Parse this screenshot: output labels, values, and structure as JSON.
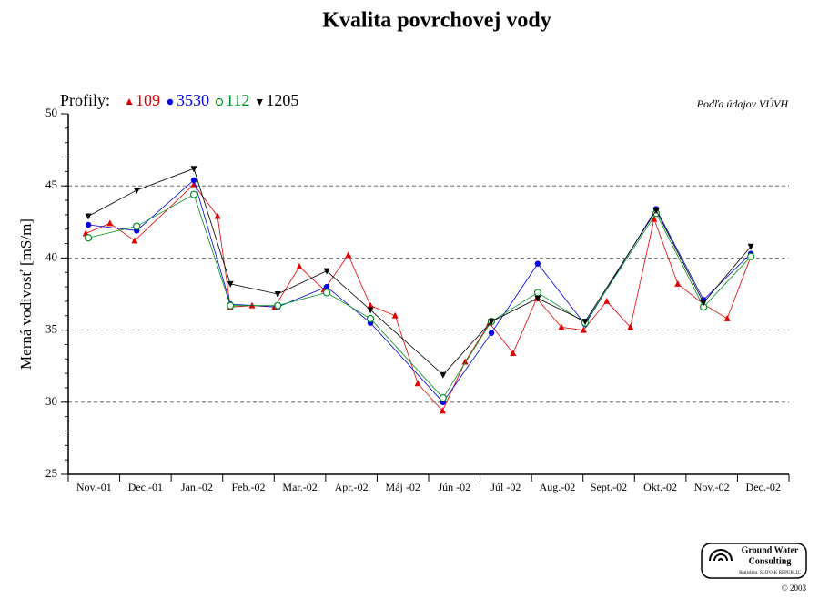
{
  "chart_data": {
    "type": "line",
    "title": "Kvalita povrchovej vody",
    "legend_title": "Profily:",
    "note": "Podľa údajov VÚVH",
    "y_label": "Merná vodivosť [mS/m]",
    "categories": [
      "Nov.-01",
      "Dec.-01",
      "Jan.-02",
      "Feb.-02",
      "Mar.-02",
      "Apr.-02",
      "Máj -02",
      "Jún -02",
      "Júl -02",
      "Aug.-02",
      "Sept.-02",
      "Okt.-02",
      "Nov.-02",
      "Dec.-02"
    ],
    "xlim": [
      0,
      14
    ],
    "ylim": [
      25,
      50
    ],
    "yticks": [
      25,
      30,
      35,
      40,
      45,
      50
    ],
    "grid": true,
    "series": [
      {
        "name": "109",
        "color": "#e00000",
        "marker": "triangle-up",
        "x": [
          0.34,
          0.81,
          1.29,
          2.44,
          2.9,
          3.15,
          3.57,
          4.01,
          4.49,
          4.97,
          5.44,
          5.87,
          6.35,
          6.79,
          7.27,
          7.71,
          8.18,
          8.64,
          9.1,
          9.58,
          10.01,
          10.46,
          10.92,
          11.38,
          11.84,
          12.34,
          12.8,
          13.26
        ],
        "values": [
          41.7,
          42.4,
          41.2,
          45.1,
          42.9,
          36.6,
          36.7,
          36.6,
          39.4,
          37.8,
          40.2,
          36.7,
          36.0,
          31.3,
          29.4,
          32.8,
          35.5,
          33.4,
          37.2,
          35.2,
          35.0,
          37.0,
          35.2,
          42.7,
          38.2,
          36.8,
          35.8,
          40.1
        ]
      },
      {
        "name": "3530",
        "color": "#0000e0",
        "marker": "circle",
        "x": [
          0.39,
          1.33,
          2.44,
          3.15,
          4.07,
          5.02,
          5.87,
          7.28,
          8.22,
          9.12,
          10.04,
          11.42,
          12.34,
          13.26
        ],
        "values": [
          42.3,
          41.9,
          45.4,
          36.8,
          36.6,
          38.0,
          35.5,
          30.0,
          34.8,
          39.6,
          35.4,
          43.4,
          37.1,
          40.3
        ]
      },
      {
        "name": "112",
        "color": "#009020",
        "marker": "circle-open",
        "x": [
          0.39,
          1.33,
          2.44,
          3.15,
          4.07,
          5.02,
          5.87,
          7.28,
          8.22,
          9.12,
          10.04,
          11.42,
          12.34,
          13.26
        ],
        "values": [
          41.4,
          42.2,
          44.4,
          36.7,
          36.7,
          37.6,
          35.8,
          30.3,
          35.6,
          37.6,
          35.5,
          43.1,
          36.6,
          40.1
        ]
      },
      {
        "name": "1205",
        "color": "#000000",
        "marker": "triangle-down",
        "x": [
          0.39,
          1.33,
          2.44,
          3.15,
          4.07,
          5.02,
          5.87,
          7.28,
          8.22,
          9.12,
          10.04,
          11.42,
          12.34,
          13.26
        ],
        "values": [
          42.9,
          44.7,
          46.2,
          38.2,
          37.5,
          39.1,
          36.4,
          31.9,
          35.6,
          37.2,
          35.6,
          43.3,
          36.9,
          40.8
        ]
      }
    ]
  },
  "logo": {
    "name": "Ground Water",
    "name2": "Consulting",
    "place": "Bratislava, SLOVAK REPUBLIC",
    "copyright": "© 2003"
  }
}
